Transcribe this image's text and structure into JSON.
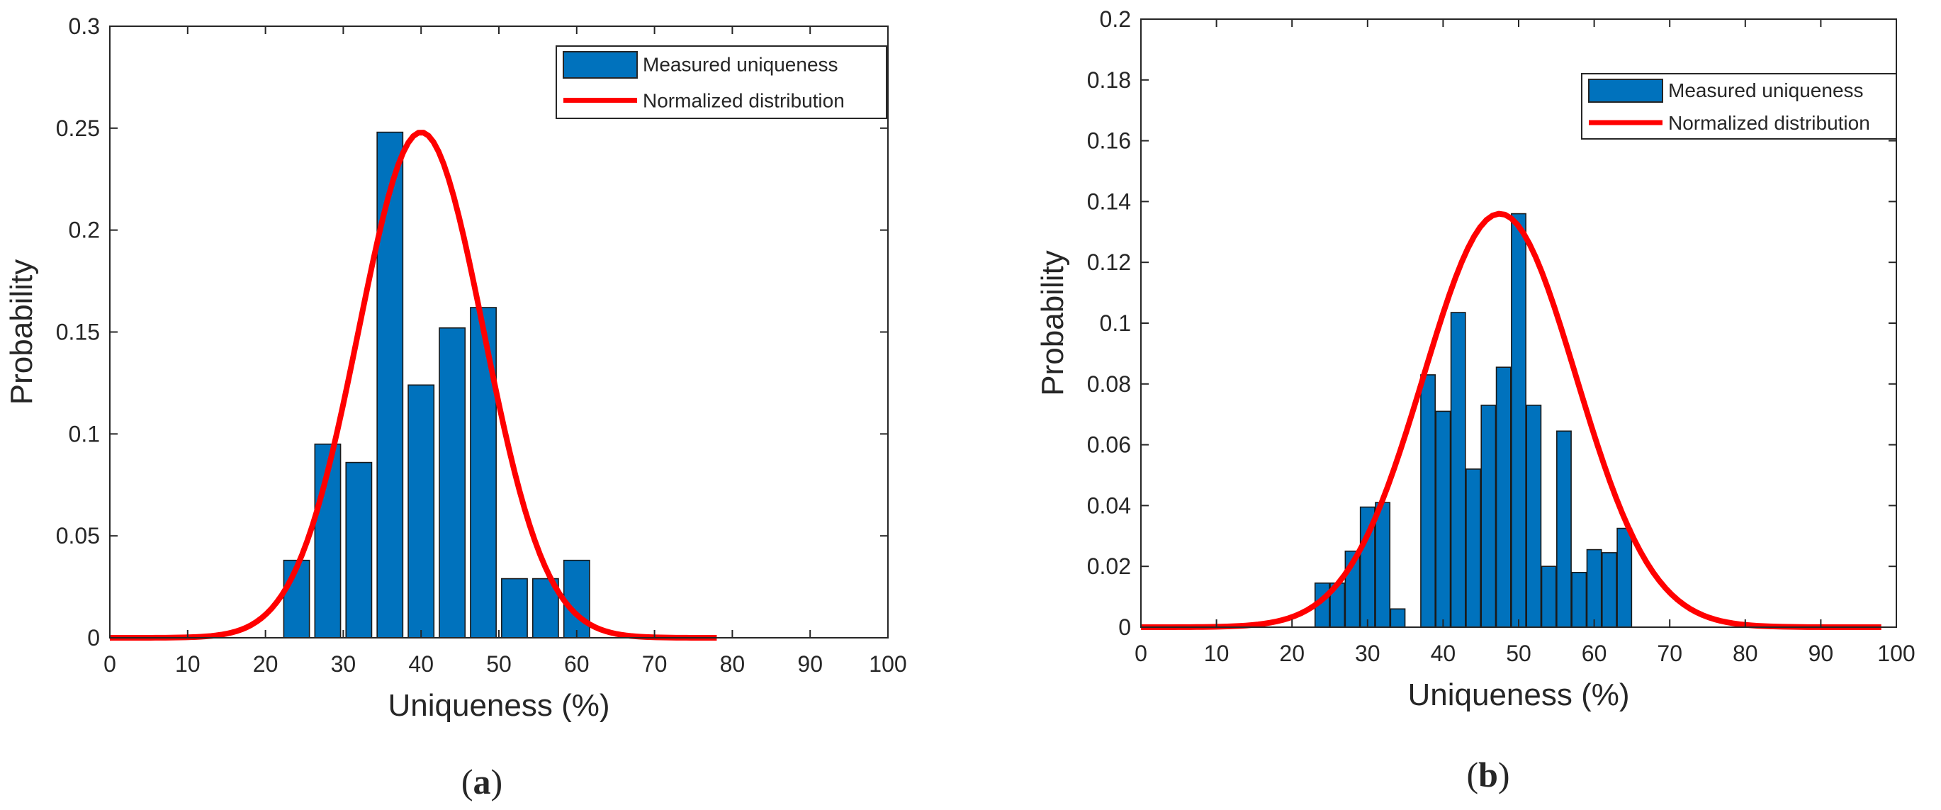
{
  "chart_data": [
    {
      "id": "a",
      "type": "bar",
      "caption_label": "a",
      "xlabel": "Uniqueness (%)",
      "ylabel": "Probability",
      "xlim": [
        0,
        100
      ],
      "ylim": [
        0,
        0.3
      ],
      "xticks": [
        0,
        10,
        20,
        30,
        40,
        50,
        60,
        70,
        80,
        90,
        100
      ],
      "yticks": [
        0,
        0.05,
        0.1,
        0.15,
        0.2,
        0.25,
        0.3
      ],
      "ytick_labels": [
        "0",
        "0.05",
        "0.1",
        "0.15",
        "0.2",
        "0.25",
        "0.3"
      ],
      "bar_width": 3.3,
      "x": [
        24,
        28,
        32,
        36,
        40,
        44,
        48,
        52,
        56,
        60
      ],
      "values": [
        0.038,
        0.095,
        0.086,
        0.248,
        0.124,
        0.152,
        0.162,
        0.029,
        0.029,
        0.038
      ],
      "curve": {
        "mean": 40,
        "sd": 8.05,
        "peak": 0.248,
        "x_start": 0,
        "x_end": 78
      },
      "legend": {
        "position": "top-right",
        "entries": [
          "Measured uniqueness",
          "Normalized distribution"
        ]
      },
      "colors": {
        "bar": "#0072BD",
        "curve": "#FF0000"
      }
    },
    {
      "id": "b",
      "type": "bar",
      "caption_label": "b",
      "xlabel": "Uniqueness (%)",
      "ylabel": "Probability",
      "xlim": [
        0,
        100
      ],
      "ylim": [
        0,
        0.2
      ],
      "xticks": [
        0,
        10,
        20,
        30,
        40,
        50,
        60,
        70,
        80,
        90,
        100
      ],
      "yticks": [
        0,
        0.02,
        0.04,
        0.06,
        0.08,
        0.1,
        0.12,
        0.14,
        0.16,
        0.18,
        0.2
      ],
      "ytick_labels": [
        "0",
        "0.02",
        "0.04",
        "0.06",
        "0.08",
        "0.1",
        "0.12",
        "0.14",
        "0.16",
        "0.18",
        "0.2"
      ],
      "bar_width": 1.9,
      "x": [
        24,
        26,
        28,
        30,
        32,
        34,
        38,
        40,
        42,
        44,
        46,
        48,
        50,
        52,
        54,
        56,
        58,
        60,
        62,
        64,
        66,
        68
      ],
      "values": [
        0.0145,
        0.0145,
        0.025,
        0.0395,
        0.041,
        0.006,
        0.083,
        0.071,
        0.1035,
        0.052,
        0.073,
        0.0855,
        0.136,
        0.073,
        0.02,
        0.0645,
        0.018,
        0.0255,
        0.0245,
        0.0325,
        0,
        0
      ],
      "curve": {
        "mean": 47.5,
        "sd": 10.1,
        "peak": 0.136,
        "x_start": 0,
        "x_end": 98
      },
      "legend": {
        "position": "top-right",
        "entries": [
          "Measured uniqueness",
          "Normalized distribution"
        ]
      },
      "colors": {
        "bar": "#0072BD",
        "curve": "#FF0000"
      }
    }
  ]
}
